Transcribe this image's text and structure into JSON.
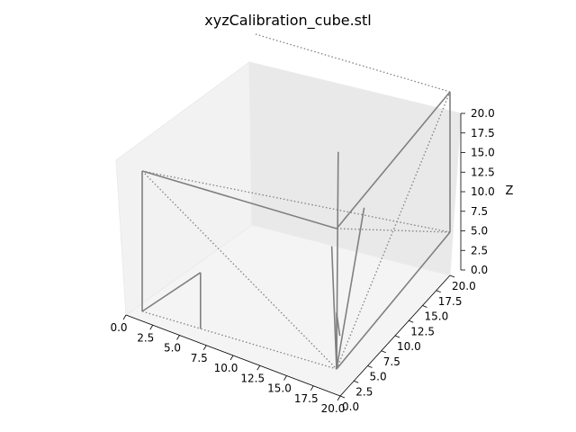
{
  "chart_data": {
    "type": "line3d",
    "title": "xyzCalibration_cube.stl",
    "xlabel": "",
    "ylabel": "",
    "zlabel": "Z",
    "xlim": [
      0,
      20
    ],
    "ylim": [
      0,
      20
    ],
    "zlim": [
      0,
      20
    ],
    "xticks": [
      "0.0",
      "2.5",
      "5.0",
      "7.5",
      "10.0",
      "12.5",
      "15.0",
      "17.5",
      "20.0"
    ],
    "yticks": [
      "0.0",
      "2.5",
      "5.0",
      "7.5",
      "10.0",
      "12.5",
      "15.0",
      "17.5",
      "20.0"
    ],
    "zticks": [
      "0.0",
      "2.5",
      "5.0",
      "7.5",
      "10.0",
      "12.5",
      "15.0",
      "17.5",
      "20.0"
    ],
    "line_color": "#808080",
    "pane_color": "#f2f2f2",
    "grid": false,
    "solid_edges": [
      [
        [
          0,
          0,
          20
        ],
        [
          20,
          0,
          20
        ]
      ],
      [
        [
          20,
          0,
          20
        ],
        [
          20,
          20,
          20
        ]
      ],
      [
        [
          20,
          20,
          20
        ],
        [
          20,
          20,
          0
        ]
      ],
      [
        [
          0,
          0,
          20
        ],
        [
          0,
          0,
          0
        ]
      ],
      [
        [
          0,
          0,
          0
        ],
        [
          6,
          0,
          8
        ]
      ],
      [
        [
          6,
          0,
          8
        ],
        [
          6,
          0,
          0
        ]
      ],
      [
        [
          20,
          0,
          0
        ],
        [
          20,
          0,
          8
        ]
      ],
      [
        [
          20,
          0,
          8
        ],
        [
          18,
          4,
          0
        ]
      ],
      [
        [
          20,
          0,
          0
        ],
        [
          20,
          20,
          0
        ]
      ],
      [
        [
          20,
          0,
          0
        ],
        [
          16,
          6,
          10
        ]
      ],
      [
        [
          20,
          0,
          0
        ],
        [
          17,
          10,
          12
        ]
      ],
      [
        [
          20,
          0,
          0
        ],
        [
          12,
          14,
          14
        ]
      ]
    ],
    "dotted_edges": [
      [
        [
          0,
          0,
          20
        ],
        [
          20,
          0,
          0
        ]
      ],
      [
        [
          0,
          0,
          20
        ],
        [
          20,
          20,
          0
        ]
      ],
      [
        [
          20,
          0,
          20
        ],
        [
          20,
          20,
          0
        ]
      ],
      [
        [
          0,
          0,
          0
        ],
        [
          20,
          0,
          0
        ]
      ],
      [
        [
          20,
          0,
          0
        ],
        [
          20,
          20,
          20
        ]
      ],
      [
        [
          0,
          20,
          20
        ],
        [
          20,
          20,
          20
        ]
      ]
    ]
  }
}
